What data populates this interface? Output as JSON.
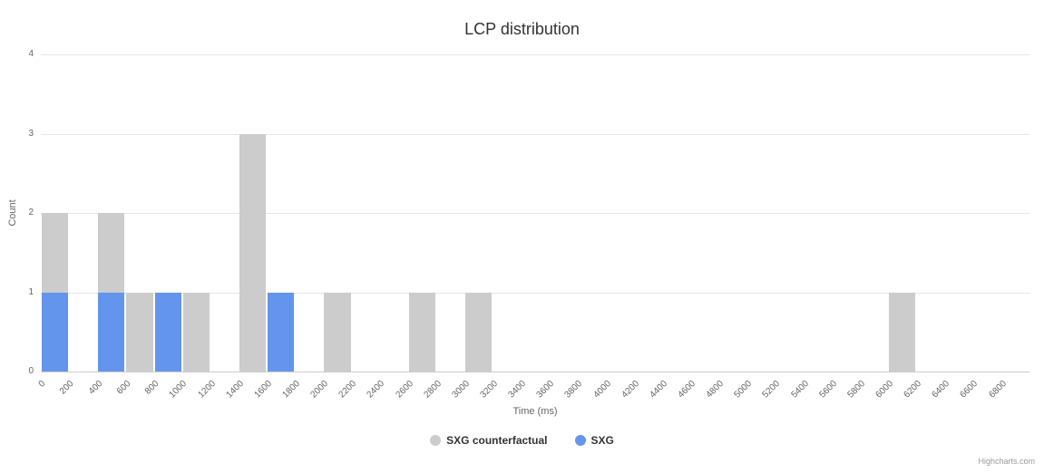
{
  "title": "LCP distribution",
  "yaxis": {
    "title": "Count",
    "ticks": [
      0,
      1,
      2,
      3,
      4
    ]
  },
  "xaxis": {
    "title": "Time (ms)",
    "tick_start": 0,
    "tick_step": 200,
    "tick_end": 6800
  },
  "legend": [
    {
      "label": "SXG counterfactual",
      "color": "#cccccc"
    },
    {
      "label": "SXG",
      "color": "#6495ed"
    }
  ],
  "credits": "Highcharts.com",
  "chart_data": {
    "type": "bar",
    "title": "LCP distribution",
    "xlabel": "Time (ms)",
    "ylabel": "Count",
    "x_bin_width": 200,
    "xlim": [
      0,
      7000
    ],
    "ylim": [
      0,
      4
    ],
    "grid": true,
    "legend_position": "bottom",
    "series": [
      {
        "name": "SXG counterfactual",
        "color": "#cccccc",
        "points": [
          [
            0,
            2
          ],
          [
            400,
            2
          ],
          [
            600,
            1
          ],
          [
            1000,
            1
          ],
          [
            1400,
            3
          ],
          [
            2000,
            1
          ],
          [
            2600,
            1
          ],
          [
            3000,
            1
          ],
          [
            6000,
            1
          ]
        ]
      },
      {
        "name": "SXG",
        "color": "#6495ed",
        "points": [
          [
            0,
            1
          ],
          [
            400,
            1
          ],
          [
            800,
            1
          ],
          [
            1600,
            1
          ]
        ]
      }
    ]
  }
}
